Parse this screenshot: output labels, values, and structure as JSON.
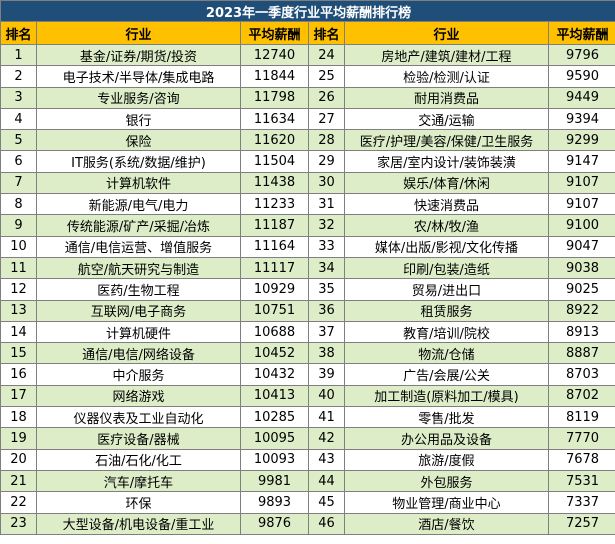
{
  "title": "2023年一季度行业平均薪酬排行榜",
  "headers": {
    "rank": "排名",
    "industry": "行业",
    "salary": "平均薪酬"
  },
  "colors": {
    "title_bg": "#1f4e79",
    "header_bg": "#ffc000",
    "row_alt": "#dcedc8",
    "border": "#7f7f7f"
  },
  "left": [
    {
      "rank": "1",
      "industry": "基金/证券/期货/投资",
      "salary": "12740"
    },
    {
      "rank": "2",
      "industry": "电子技术/半导体/集成电路",
      "salary": "11844"
    },
    {
      "rank": "3",
      "industry": "专业服务/咨询",
      "salary": "11798"
    },
    {
      "rank": "4",
      "industry": "银行",
      "salary": "11634"
    },
    {
      "rank": "5",
      "industry": "保险",
      "salary": "11620"
    },
    {
      "rank": "6",
      "industry": "IT服务(系统/数据/维护)",
      "salary": "11504"
    },
    {
      "rank": "7",
      "industry": "计算机软件",
      "salary": "11438"
    },
    {
      "rank": "8",
      "industry": "新能源/电气/电力",
      "salary": "11233"
    },
    {
      "rank": "9",
      "industry": "传统能源/矿产/采掘/冶炼",
      "salary": "11187"
    },
    {
      "rank": "10",
      "industry": "通信/电信运营、增值服务",
      "salary": "11164"
    },
    {
      "rank": "11",
      "industry": "航空/航天研究与制造",
      "salary": "11117"
    },
    {
      "rank": "12",
      "industry": "医药/生物工程",
      "salary": "10929"
    },
    {
      "rank": "13",
      "industry": "互联网/电子商务",
      "salary": "10751"
    },
    {
      "rank": "14",
      "industry": "计算机硬件",
      "salary": "10688"
    },
    {
      "rank": "15",
      "industry": "通信/电信/网络设备",
      "salary": "10452"
    },
    {
      "rank": "16",
      "industry": "中介服务",
      "salary": "10432"
    },
    {
      "rank": "17",
      "industry": "网络游戏",
      "salary": "10413"
    },
    {
      "rank": "18",
      "industry": "仪器仪表及工业自动化",
      "salary": "10285"
    },
    {
      "rank": "19",
      "industry": "医疗设备/器械",
      "salary": "10095"
    },
    {
      "rank": "20",
      "industry": "石油/石化/化工",
      "salary": "10093"
    },
    {
      "rank": "21",
      "industry": "汽车/摩托车",
      "salary": "9981"
    },
    {
      "rank": "22",
      "industry": "环保",
      "salary": "9893"
    },
    {
      "rank": "23",
      "industry": "大型设备/机电设备/重工业",
      "salary": "9876"
    }
  ],
  "right": [
    {
      "rank": "24",
      "industry": "房地产/建筑/建材/工程",
      "salary": "9796"
    },
    {
      "rank": "25",
      "industry": "检验/检测/认证",
      "salary": "9590"
    },
    {
      "rank": "26",
      "industry": "耐用消费品",
      "salary": "9449"
    },
    {
      "rank": "27",
      "industry": "交通/运输",
      "salary": "9394"
    },
    {
      "rank": "28",
      "industry": "医疗/护理/美容/保健/卫生服务",
      "salary": "9299"
    },
    {
      "rank": "29",
      "industry": "家居/室内设计/装饰装潢",
      "salary": "9147"
    },
    {
      "rank": "30",
      "industry": "娱乐/体育/休闲",
      "salary": "9107"
    },
    {
      "rank": "31",
      "industry": "快速消费品",
      "salary": "9107"
    },
    {
      "rank": "32",
      "industry": "农/林/牧/渔",
      "salary": "9100"
    },
    {
      "rank": "33",
      "industry": "媒体/出版/影视/文化传播",
      "salary": "9047"
    },
    {
      "rank": "34",
      "industry": "印刷/包装/造纸",
      "salary": "9038"
    },
    {
      "rank": "35",
      "industry": "贸易/进出口",
      "salary": "9025"
    },
    {
      "rank": "36",
      "industry": "租赁服务",
      "salary": "8922"
    },
    {
      "rank": "37",
      "industry": "教育/培训/院校",
      "salary": "8913"
    },
    {
      "rank": "38",
      "industry": "物流/仓储",
      "salary": "8887"
    },
    {
      "rank": "39",
      "industry": "广告/会展/公关",
      "salary": "8703"
    },
    {
      "rank": "40",
      "industry": "加工制造(原料加工/模具)",
      "salary": "8702"
    },
    {
      "rank": "41",
      "industry": "零售/批发",
      "salary": "8119"
    },
    {
      "rank": "42",
      "industry": "办公用品及设备",
      "salary": "7770"
    },
    {
      "rank": "43",
      "industry": "旅游/度假",
      "salary": "7678"
    },
    {
      "rank": "44",
      "industry": "外包服务",
      "salary": "7531"
    },
    {
      "rank": "45",
      "industry": "物业管理/商业中心",
      "salary": "7337"
    },
    {
      "rank": "46",
      "industry": "酒店/餐饮",
      "salary": "7257"
    }
  ]
}
